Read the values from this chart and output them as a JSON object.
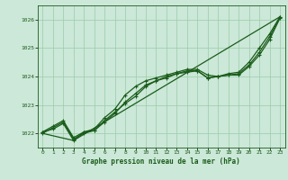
{
  "title": "Graphe pression niveau de la mer (hPa)",
  "xlim": [
    -0.5,
    23.5
  ],
  "ylim": [
    1021.5,
    1026.5
  ],
  "yticks": [
    1022,
    1023,
    1024,
    1025,
    1026
  ],
  "xticks": [
    0,
    1,
    2,
    3,
    4,
    5,
    6,
    7,
    8,
    9,
    10,
    11,
    12,
    13,
    14,
    15,
    16,
    17,
    18,
    19,
    20,
    21,
    22,
    23
  ],
  "background_color": "#cce8d8",
  "grid_color": "#99ccaa",
  "line_color": "#1a5c1a",
  "line1": [
    1022.0,
    1022.2,
    1022.4,
    1021.8,
    1022.0,
    1022.1,
    1022.4,
    1022.7,
    1023.1,
    1023.4,
    1023.7,
    1023.85,
    1024.0,
    1024.1,
    1024.15,
    1024.2,
    1023.95,
    1024.0,
    1024.05,
    1024.1,
    1024.4,
    1024.85,
    1025.4,
    1026.1
  ],
  "line2": [
    1022.05,
    1022.25,
    1022.45,
    1021.85,
    1022.05,
    1022.15,
    1022.55,
    1022.85,
    1023.35,
    1023.65,
    1023.85,
    1023.95,
    1024.05,
    1024.15,
    1024.25,
    1024.25,
    1024.05,
    1024.0,
    1024.1,
    1024.15,
    1024.5,
    1025.0,
    1025.5,
    1026.1
  ],
  "line3": [
    1022.05,
    1022.15,
    1022.35,
    1021.75,
    1022.05,
    1022.1,
    1022.45,
    1022.75,
    1023.05,
    1023.3,
    1023.65,
    1023.85,
    1023.95,
    1024.1,
    1024.2,
    1024.2,
    1023.95,
    1024.0,
    1024.05,
    1024.05,
    1024.35,
    1024.75,
    1025.3,
    1026.05
  ],
  "line4_x": [
    0,
    3,
    23
  ],
  "line4_y": [
    1022.0,
    1021.75,
    1026.1
  ]
}
